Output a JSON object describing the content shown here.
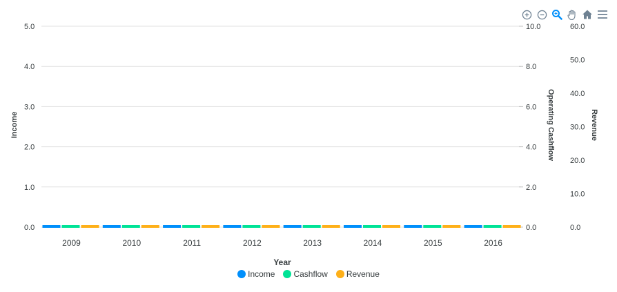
{
  "toolbar": {
    "icons": [
      "zoom-in-icon",
      "zoom-out-icon",
      "selection-zoom-icon",
      "pan-icon",
      "home-icon",
      "menu-icon"
    ]
  },
  "chart_data": {
    "type": "bar",
    "categories": [
      "2009",
      "2010",
      "2011",
      "2012",
      "2013",
      "2014",
      "2015",
      "2016"
    ],
    "xlabel": "Year",
    "series": [
      {
        "name": "Income",
        "color": "#008ffb",
        "axis": "y1",
        "values": [
          0,
          0,
          0,
          0,
          0,
          0,
          0,
          0
        ]
      },
      {
        "name": "Cashflow",
        "color": "#00e396",
        "axis": "y2",
        "values": [
          0,
          0,
          0,
          0,
          0,
          0,
          0,
          0
        ]
      },
      {
        "name": "Revenue",
        "color": "#feb019",
        "axis": "y3",
        "values": [
          0,
          0,
          0,
          0,
          0,
          0,
          0,
          0
        ]
      }
    ],
    "y1": {
      "label": "Income",
      "ticks": [
        "0.0",
        "1.0",
        "2.0",
        "3.0",
        "4.0",
        "5.0"
      ],
      "ylim": [
        0,
        5
      ]
    },
    "y2": {
      "label": "Operating Cashflow",
      "ticks": [
        "0.0",
        "2.0",
        "4.0",
        "6.0",
        "8.0",
        "10.0"
      ],
      "ylim": [
        0,
        10
      ]
    },
    "y3": {
      "label": "Revenue",
      "ticks": [
        "0.0",
        "10.0",
        "20.0",
        "30.0",
        "40.0",
        "50.0",
        "60.0"
      ],
      "ylim": [
        0,
        60
      ]
    },
    "grid": true,
    "legend_position": "bottom"
  }
}
